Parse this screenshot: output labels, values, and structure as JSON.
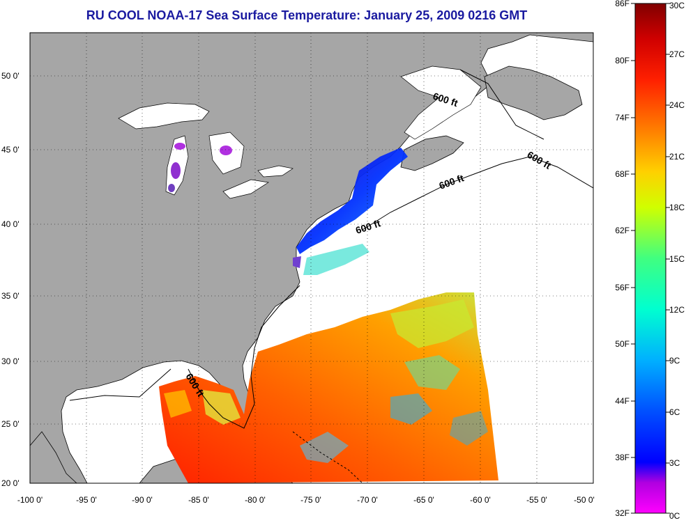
{
  "title": "RU COOL  NOAA-17  Sea Surface Temperature:  January 25, 2009 0216 GMT",
  "map": {
    "latitude_labels": [
      "50 0'",
      "45 0'",
      "40 0'",
      "35 0'",
      "30 0'",
      "25 0'",
      "20 0'"
    ],
    "longitude_labels": [
      "-100 0'",
      "-95 0'",
      "-90 0'",
      "-85 0'",
      "-80 0'",
      "-75 0'",
      "-70 0'",
      "-65 0'",
      "-60 0'",
      "-55 0'",
      "-50 0'"
    ],
    "contour_label": "600 ft",
    "colors": {
      "land": "#a6a6a6",
      "water": "#ffffff",
      "grid": "#000000"
    }
  },
  "colorbar": {
    "fahrenheit_labels": [
      "86F",
      "80F",
      "74F",
      "68F",
      "62F",
      "56F",
      "50F",
      "44F",
      "38F",
      "32F"
    ],
    "celsius_labels": [
      "30C",
      "27C",
      "24C",
      "21C",
      "18C",
      "15C",
      "12C",
      "9C",
      "6C",
      "3C",
      "0C"
    ],
    "gradient": [
      "#ff00ff",
      "#8000d0",
      "#0000ff",
      "#0060ff",
      "#00c0ff",
      "#00ffe0",
      "#60ff80",
      "#e0ff00",
      "#ffd000",
      "#ff8000",
      "#ff2000",
      "#d00000",
      "#900000"
    ]
  }
}
